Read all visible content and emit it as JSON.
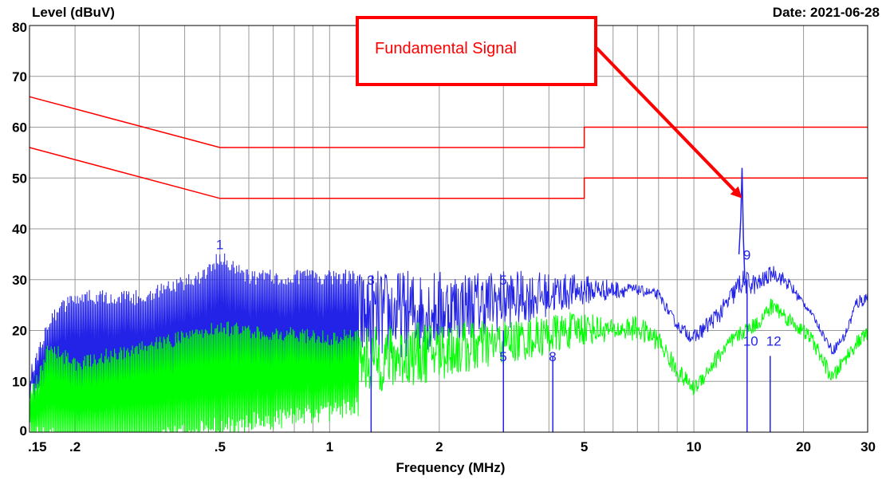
{
  "chart_data": {
    "type": "line",
    "ylabel": "Level (dBuV)",
    "xlabel": "Frequency (MHz)",
    "date_text": "Date: 2021-06-28",
    "x_scale": "log",
    "xlim": [
      0.15,
      30
    ],
    "ylim": [
      0,
      80
    ],
    "grid": true,
    "x_ticks": [
      {
        "value": 0.15,
        "label": ".15"
      },
      {
        "value": 0.2,
        "label": ".2"
      },
      {
        "value": 0.5,
        "label": ".5"
      },
      {
        "value": 1,
        "label": "1"
      },
      {
        "value": 2,
        "label": "2"
      },
      {
        "value": 5,
        "label": "5"
      },
      {
        "value": 10,
        "label": "10"
      },
      {
        "value": 20,
        "label": "20"
      },
      {
        "value": 30,
        "label": "30"
      }
    ],
    "y_ticks": [
      0,
      10,
      20,
      30,
      40,
      50,
      60,
      70,
      80
    ],
    "limit_lines": [
      {
        "color": "#ff0000",
        "points": [
          [
            0.15,
            66
          ],
          [
            0.5,
            56
          ],
          [
            5,
            56
          ],
          [
            5,
            60
          ],
          [
            30,
            60
          ]
        ]
      },
      {
        "color": "#ff0000",
        "points": [
          [
            0.15,
            56
          ],
          [
            0.5,
            46
          ],
          [
            5,
            46
          ],
          [
            5,
            50
          ],
          [
            30,
            50
          ]
        ]
      }
    ],
    "series": [
      {
        "color": "#2323e8",
        "envelope": [
          [
            0.15,
            12
          ],
          [
            0.17,
            24
          ],
          [
            0.2,
            28
          ],
          [
            0.3,
            28
          ],
          [
            0.45,
            32
          ],
          [
            0.5,
            36
          ],
          [
            0.6,
            32
          ],
          [
            1,
            32
          ],
          [
            2,
            32
          ],
          [
            3,
            32
          ],
          [
            5,
            31
          ],
          [
            7,
            29
          ],
          [
            8,
            28
          ],
          [
            9,
            22
          ],
          [
            10,
            20
          ],
          [
            12,
            26
          ],
          [
            13.5,
            32
          ],
          [
            15,
            31
          ],
          [
            16.5,
            33
          ],
          [
            18,
            31
          ],
          [
            21,
            24
          ],
          [
            24,
            17
          ],
          [
            26,
            20
          ],
          [
            28,
            27
          ],
          [
            30,
            28
          ]
        ],
        "floor": [
          [
            0.15,
            10
          ],
          [
            0.2,
            6
          ],
          [
            0.3,
            8
          ],
          [
            0.5,
            10
          ],
          [
            1,
            12
          ],
          [
            2,
            16
          ],
          [
            3,
            20
          ],
          [
            5,
            25
          ],
          [
            7,
            27
          ],
          [
            8,
            26
          ],
          [
            9,
            20
          ],
          [
            10,
            17
          ],
          [
            12,
            22
          ],
          [
            13.5,
            27
          ],
          [
            15,
            27
          ],
          [
            16.5,
            30
          ],
          [
            18,
            28
          ],
          [
            21,
            23
          ],
          [
            24,
            15
          ],
          [
            26,
            18
          ],
          [
            28,
            24
          ],
          [
            30,
            25
          ]
        ]
      },
      {
        "color": "#00ff00",
        "envelope": [
          [
            0.15,
            8
          ],
          [
            0.17,
            18
          ],
          [
            0.2,
            15
          ],
          [
            0.3,
            18
          ],
          [
            0.5,
            22
          ],
          [
            1,
            20
          ],
          [
            2,
            22
          ],
          [
            3,
            22
          ],
          [
            5,
            24
          ],
          [
            6,
            22
          ],
          [
            7,
            23
          ],
          [
            8,
            20
          ],
          [
            9,
            14
          ],
          [
            10,
            10
          ],
          [
            12,
            18
          ],
          [
            13.5,
            21
          ],
          [
            15,
            23
          ],
          [
            16.5,
            27
          ],
          [
            18,
            24
          ],
          [
            21,
            20
          ],
          [
            24,
            12
          ],
          [
            26,
            16
          ],
          [
            28,
            19
          ],
          [
            30,
            21
          ]
        ],
        "floor": [
          [
            0.15,
            2
          ],
          [
            0.2,
            0
          ],
          [
            0.3,
            0
          ],
          [
            0.5,
            3
          ],
          [
            1,
            6
          ],
          [
            2,
            10
          ],
          [
            3,
            13
          ],
          [
            5,
            17
          ],
          [
            6,
            18
          ],
          [
            7,
            18
          ],
          [
            8,
            16
          ],
          [
            9,
            10
          ],
          [
            10,
            7
          ],
          [
            12,
            14
          ],
          [
            13.5,
            18
          ],
          [
            15,
            20
          ],
          [
            16.5,
            23
          ],
          [
            18,
            21
          ],
          [
            21,
            17
          ],
          [
            24,
            9
          ],
          [
            26,
            13
          ],
          [
            28,
            16
          ],
          [
            30,
            18
          ]
        ]
      }
    ],
    "spike": {
      "x": 13.56,
      "points": [
        [
          13.3,
          35
        ],
        [
          13.45,
          42
        ],
        [
          13.56,
          52
        ],
        [
          13.68,
          38
        ],
        [
          13.8,
          30
        ]
      ],
      "color": "#2323e8"
    },
    "markers": [
      {
        "label": "1",
        "x": 0.5,
        "y": 36
      },
      {
        "label": "3",
        "x": 1.3,
        "y": 29
      },
      {
        "label": "5",
        "x": 3.0,
        "y": 29
      },
      {
        "label": "5",
        "x": 3.0,
        "y": 14
      },
      {
        "label": "8",
        "x": 4.1,
        "y": 14
      },
      {
        "label": "9",
        "x": 14.0,
        "y": 34
      },
      {
        "label": "10",
        "x": 14.0,
        "y": 17
      },
      {
        "label": "12",
        "x": 16.2,
        "y": 17
      }
    ],
    "marker_stems": [
      {
        "x": 1.3,
        "from": 0,
        "to": 20
      },
      {
        "x": 3.0,
        "from": 0,
        "to": 20
      },
      {
        "x": 4.1,
        "from": 0,
        "to": 15
      },
      {
        "x": 14.0,
        "from": 0,
        "to": 30
      },
      {
        "x": 16.2,
        "from": 0,
        "to": 15
      }
    ],
    "annotation": {
      "text": "Fundamental Signal",
      "color": "#ff0000",
      "target": {
        "x": 13.56,
        "y": 46
      }
    }
  }
}
